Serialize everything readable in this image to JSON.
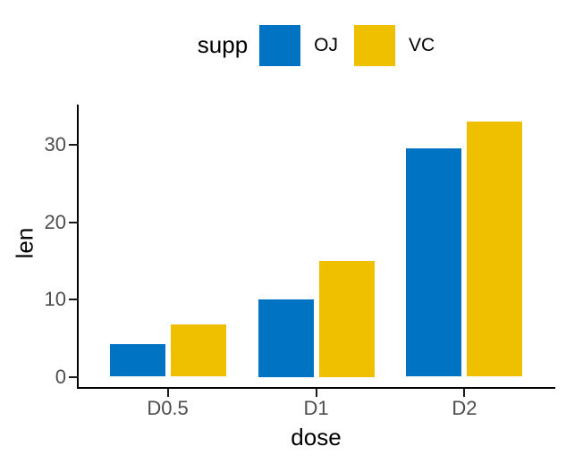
{
  "chart_data": {
    "type": "bar",
    "bar_mode": "grouped",
    "categories": [
      "D0.5",
      "D1",
      "D2"
    ],
    "series": [
      {
        "name": "OJ",
        "color": "#0073C2",
        "values": [
          4.2,
          10,
          29.5
        ]
      },
      {
        "name": "VC",
        "color": "#EFC000",
        "values": [
          6.8,
          15,
          33
        ]
      }
    ],
    "title": "",
    "xlabel": "dose",
    "ylabel": "len",
    "yticks": [
      0,
      10,
      20,
      30
    ],
    "ylim": [
      0,
      34.65
    ],
    "legend_title": "supp",
    "legend_position": "top",
    "grid": false
  },
  "colors": {
    "background": "#ffffff",
    "axis_line": "#000000",
    "tick_label": "#4d4d4d",
    "axis_title": "#000000",
    "legend_text": "#000000"
  }
}
